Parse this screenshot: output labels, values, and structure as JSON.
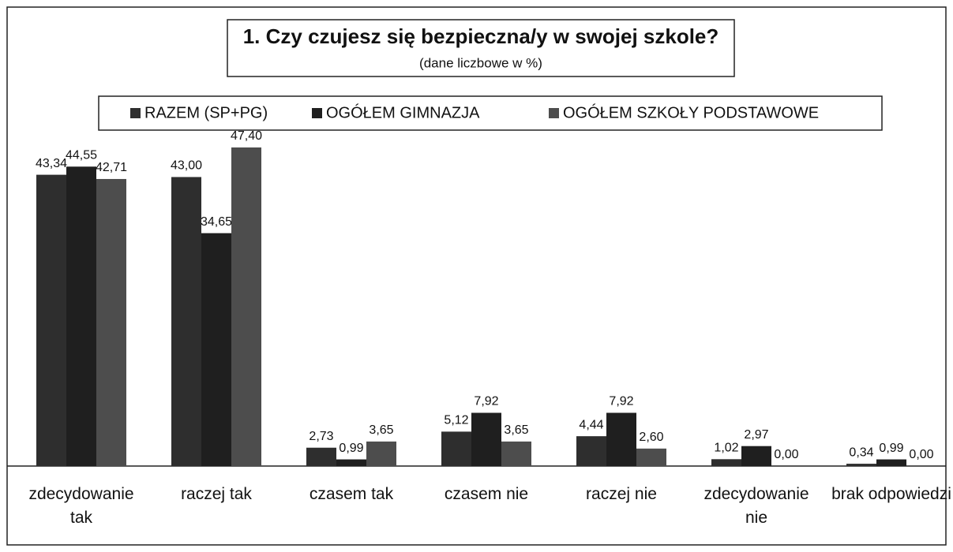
{
  "chart_data": {
    "type": "bar",
    "title": "1. Czy czujesz się bezpieczna/y  w swojej szkole?",
    "subtitle": "(dane liczbowe w %)",
    "categories": [
      "zdecydowanie tak",
      "raczej tak",
      "czasem tak",
      "czasem nie",
      "raczej nie",
      "zdecydowanie nie",
      "brak odpowiedzi"
    ],
    "series": [
      {
        "name": "RAZEM (SP+PG)",
        "color": "#2e2e2e",
        "values": [
          43.34,
          43.0,
          2.73,
          5.12,
          4.44,
          1.02,
          0.34
        ],
        "value_labels": [
          "43,34",
          "43,00",
          "2,73",
          "5,12",
          "4,44",
          "1,02",
          "0,34"
        ]
      },
      {
        "name": "OGÓŁEM GIMNAZJA",
        "color": "#1f1f1f",
        "values": [
          44.55,
          34.65,
          0.99,
          7.92,
          7.92,
          2.97,
          0.99
        ],
        "value_labels": [
          "44,55",
          "34,65",
          "0,99",
          "7,92",
          "7,92",
          "2,97",
          "0,99"
        ]
      },
      {
        "name": "OGÓŁEM SZKOŁY PODSTAWOWE",
        "color": "#4d4d4d",
        "values": [
          42.71,
          47.4,
          3.65,
          3.65,
          2.6,
          0.0,
          0.0
        ],
        "value_labels": [
          "42,71",
          "47,40",
          "3,65",
          "3,65",
          "2,60",
          "0,00",
          "0,00"
        ]
      }
    ],
    "legend": "top"
  }
}
